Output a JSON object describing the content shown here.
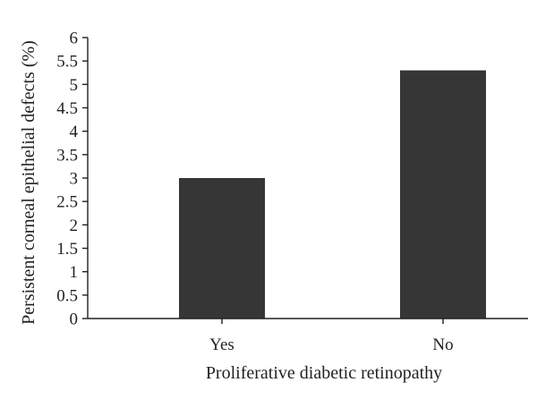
{
  "chart_data": {
    "type": "bar",
    "categories": [
      "Yes",
      "No"
    ],
    "values": [
      3.0,
      5.3
    ],
    "xlabel": "Proliferative diabetic retinopathy",
    "ylabel": "Persistent corneal epithelial defects (%)",
    "ylim": [
      0,
      6
    ],
    "yticks": [
      "0",
      "0.5",
      "1",
      "1.5",
      "2",
      "2.5",
      "3",
      "3.5",
      "4",
      "4.5",
      "5",
      "5.5",
      "6"
    ],
    "grid": false,
    "legend": "none",
    "colors": {
      "bar": "#363636",
      "axis": "#231f20",
      "text": "#231f20"
    }
  }
}
